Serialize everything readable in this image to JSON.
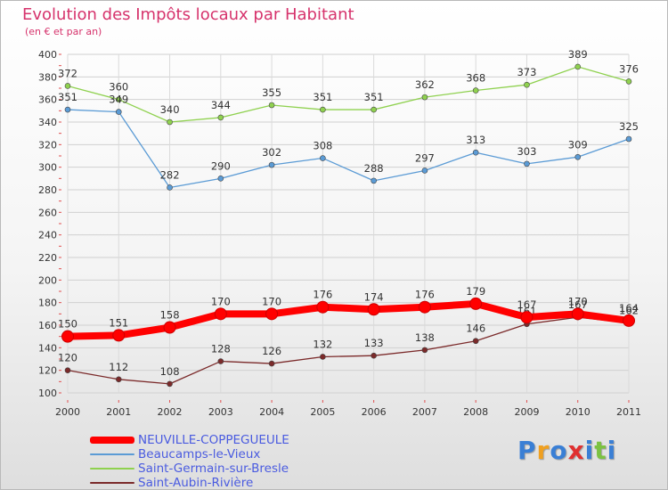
{
  "chart_data": {
    "type": "line",
    "title": "Evolution des Impôts locaux par Habitant",
    "subtitle": "(en € et par an)",
    "categories": [
      "2000",
      "2001",
      "2002",
      "2003",
      "2004",
      "2005",
      "2006",
      "2007",
      "2008",
      "2009",
      "2010",
      "2011"
    ],
    "ylim": [
      100,
      400
    ],
    "yticks": [
      100,
      120,
      140,
      160,
      180,
      200,
      220,
      240,
      260,
      280,
      300,
      320,
      340,
      360,
      380,
      400
    ],
    "grid": true,
    "legend_position": "bottom-left",
    "series": [
      {
        "name": "Saint-Germain-sur-Bresle",
        "color": "#8fd14f",
        "values": [
          372,
          360,
          340,
          344,
          355,
          351,
          351,
          362,
          368,
          373,
          389,
          376
        ],
        "labels": [
          "372",
          "360",
          "340",
          "344",
          "355",
          "351",
          "351",
          "362",
          "368",
          "373",
          "389",
          "376"
        ]
      },
      {
        "name": "Beaucamps-le-Vieux",
        "color": "#5b9bd5",
        "values": [
          351,
          349,
          282,
          290,
          302,
          308,
          288,
          297,
          313,
          303,
          309,
          325
        ],
        "labels": [
          "351",
          "349",
          "282",
          "290",
          "302",
          "308",
          "288",
          "297",
          "313",
          "303",
          "309",
          "325"
        ]
      },
      {
        "name": "Saint-Aubin-Rivière",
        "color": "#7b2a2a",
        "values": [
          120,
          112,
          108,
          128,
          126,
          132,
          133,
          138,
          146,
          161,
          167,
          162
        ],
        "labels": [
          "120",
          "112",
          "108",
          "128",
          "126",
          "132",
          "133",
          "138",
          "146",
          "161",
          "167",
          "162"
        ]
      },
      {
        "name": "NEUVILLE-COPPEGUEULE",
        "color": "#ff0000",
        "values": [
          150,
          151,
          158,
          170,
          170,
          176,
          174,
          176,
          179,
          167,
          170,
          164
        ],
        "labels": [
          "150",
          "151",
          "158",
          "170",
          "170",
          "176",
          "174",
          "176",
          "179",
          "167",
          "170",
          "164"
        ]
      }
    ],
    "legend_order": [
      "NEUVILLE-COPPEGUEULE",
      "Beaucamps-le-Vieux",
      "Saint-Germain-sur-Bresle",
      "Saint-Aubin-Rivière"
    ]
  },
  "logo": {
    "text": "Proxiti",
    "letters": [
      "P",
      "r",
      "o",
      "x",
      "i",
      "t",
      "i"
    ],
    "colors": [
      "#3a7fd5",
      "#f0a020",
      "#3a7fd5",
      "#e03030",
      "#3a7fd5",
      "#7cc242",
      "#3a7fd5"
    ]
  }
}
